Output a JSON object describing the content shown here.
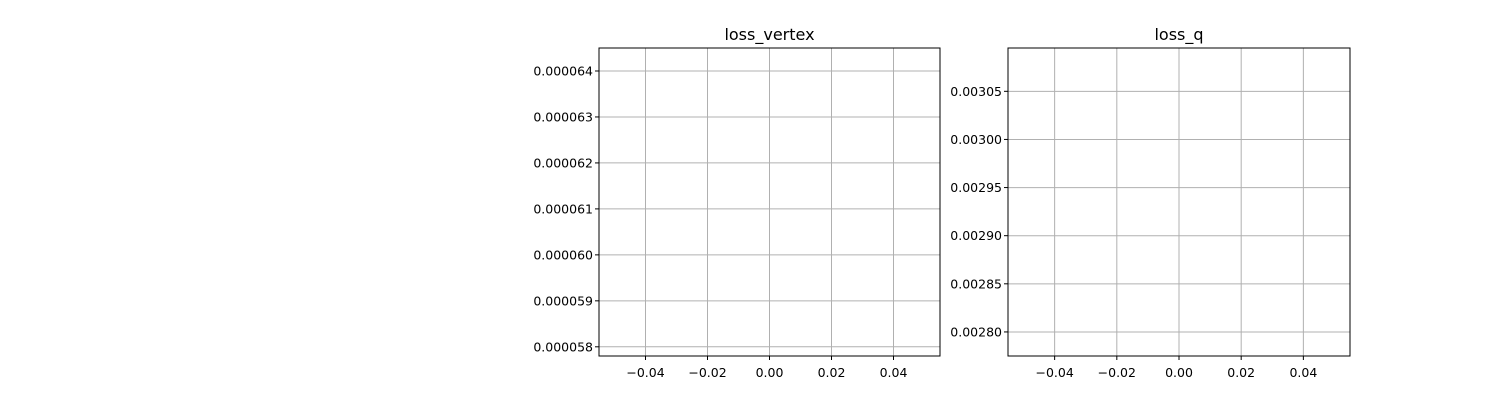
{
  "chart_data": [
    {
      "type": "line",
      "title": "loss_vertex",
      "xlabel": "",
      "ylabel": "",
      "xlim": [
        -0.055,
        0.055
      ],
      "ylim": [
        5.78e-05,
        6.45e-05
      ],
      "xticks": [
        -0.04,
        -0.02,
        0.0,
        0.02,
        0.04
      ],
      "xtick_labels": [
        "−0.04",
        "−0.02",
        "0.00",
        "0.02",
        "0.04"
      ],
      "yticks": [
        5.8e-05,
        5.9e-05,
        6e-05,
        6.1e-05,
        6.2e-05,
        6.3e-05,
        6.4e-05
      ],
      "ytick_labels": [
        "0.000058",
        "0.000059",
        "0.000060",
        "0.000061",
        "0.000062",
        "0.000063",
        "0.000064"
      ],
      "grid": true,
      "series": [
        {
          "x": [],
          "y": []
        }
      ]
    },
    {
      "type": "line",
      "title": "loss_q",
      "xlabel": "",
      "ylabel": "",
      "xlim": [
        -0.055,
        0.055
      ],
      "ylim": [
        0.002775,
        0.003095
      ],
      "xticks": [
        -0.04,
        -0.02,
        0.0,
        0.02,
        0.04
      ],
      "xtick_labels": [
        "−0.04",
        "−0.02",
        "0.00",
        "0.02",
        "0.04"
      ],
      "yticks": [
        0.0028,
        0.00285,
        0.0029,
        0.00295,
        0.003,
        0.00305
      ],
      "ytick_labels": [
        "0.00280",
        "0.00285",
        "0.00290",
        "0.00295",
        "0.00300",
        "0.00305"
      ],
      "grid": true,
      "series": [
        {
          "x": [],
          "y": []
        }
      ]
    }
  ]
}
